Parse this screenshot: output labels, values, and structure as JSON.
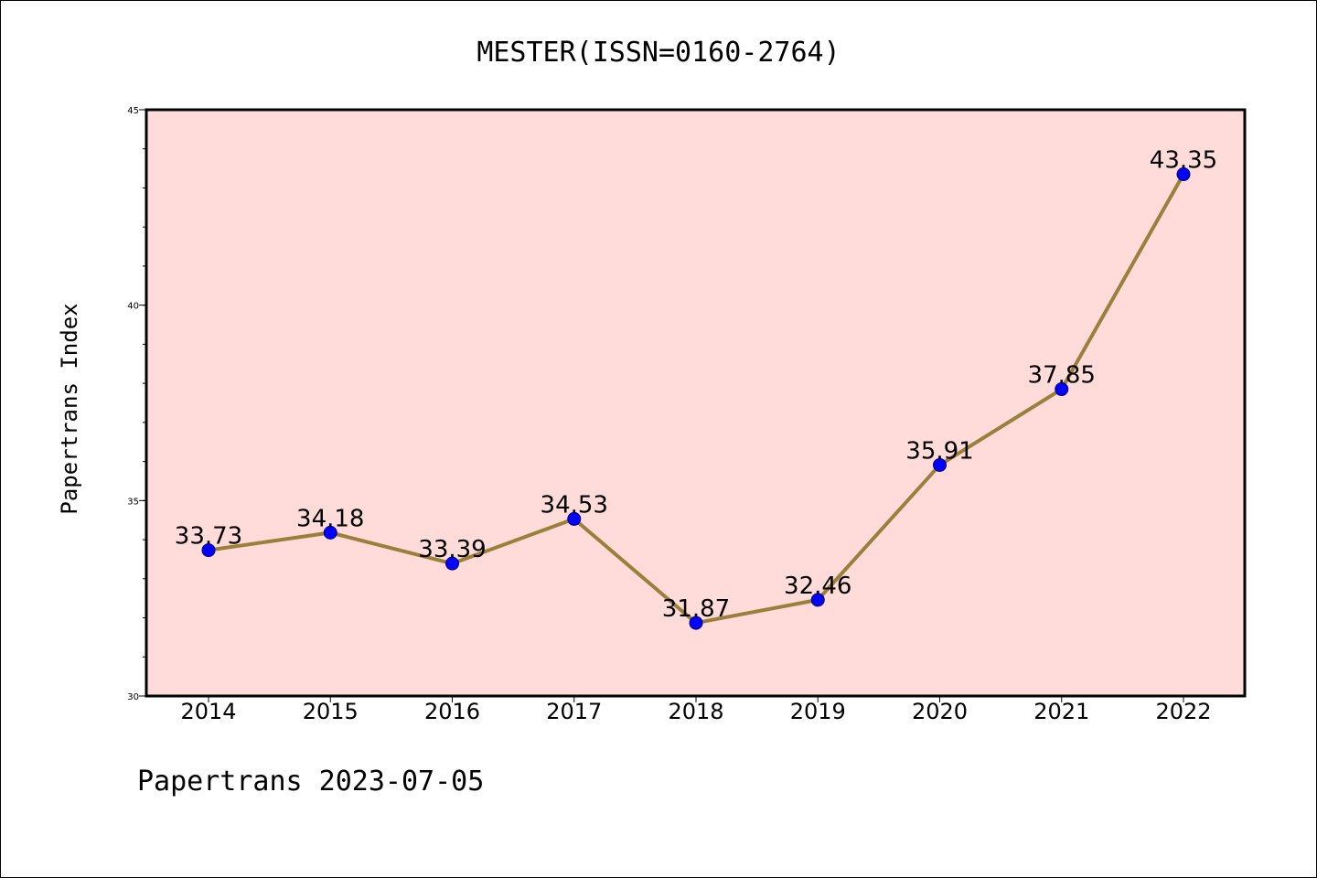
{
  "chart_data": {
    "type": "line",
    "title": "MESTER(ISSN=0160-2764)",
    "ylabel": "Papertrans Index",
    "xlabel": "",
    "footer": "Papertrans 2023-07-05",
    "categories": [
      "2014",
      "2015",
      "2016",
      "2017",
      "2018",
      "2019",
      "2020",
      "2021",
      "2022"
    ],
    "series": [
      {
        "values": [
          33.73,
          34.18,
          33.39,
          34.53,
          31.87,
          32.46,
          35.91,
          37.85,
          43.35
        ]
      }
    ],
    "data_labels": [
      "33.73",
      "34.18",
      "33.39",
      "34.53",
      "31.87",
      "32.46",
      "35.91",
      "37.85",
      "43.35"
    ],
    "ylim": [
      30,
      45
    ],
    "yticks": [
      "30",
      "35",
      "40",
      "45"
    ],
    "plot_background": "#ffdcda",
    "line_color": "#9b7f3a",
    "marker_color": "#0000ff",
    "grid": false,
    "legend": "none"
  }
}
